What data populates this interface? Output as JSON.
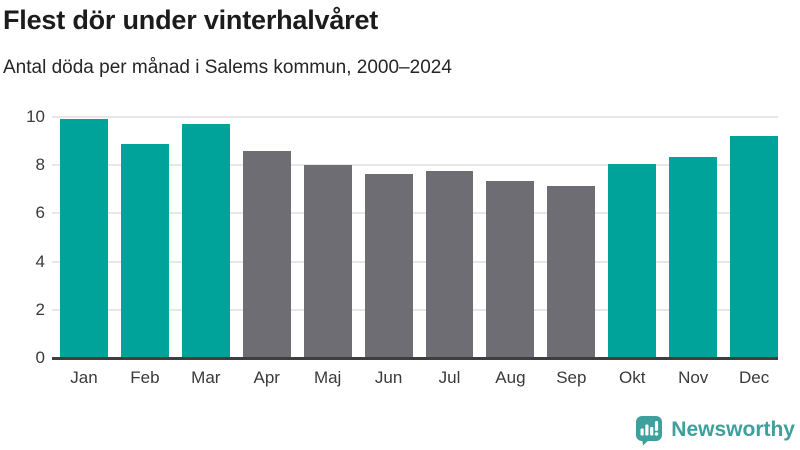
{
  "header": {
    "title": "Flest dör under vinterhalvåret",
    "subtitle": "Antal döda per månad i Salems kommun, 2000–2024"
  },
  "chart_data": {
    "type": "bar",
    "title": "Flest dör under vinterhalvåret",
    "subtitle": "Antal döda per månad i Salems kommun, 2000–2024",
    "categories": [
      "Jan",
      "Feb",
      "Mar",
      "Apr",
      "Maj",
      "Jun",
      "Jul",
      "Aug",
      "Sep",
      "Okt",
      "Nov",
      "Dec"
    ],
    "values": [
      9.9,
      8.9,
      9.7,
      8.6,
      8.0,
      7.65,
      7.75,
      7.35,
      7.15,
      8.05,
      8.35,
      9.2
    ],
    "bar_groups": [
      "winter",
      "winter",
      "winter",
      "summer",
      "summer",
      "summer",
      "summer",
      "summer",
      "summer",
      "winter",
      "winter",
      "winter"
    ],
    "group_colors": {
      "winter": "#00a39a",
      "summer": "#6e6d73"
    },
    "xlabel": "",
    "ylabel": "",
    "ylim": [
      0,
      10
    ],
    "yticks": [
      0,
      2,
      4,
      6,
      8,
      10
    ],
    "grid": true,
    "legend": false
  },
  "footer": {
    "brand": "Newsworthy",
    "logo_icon": "newsworthy-speech-bubble-barchart-icon"
  },
  "colors": {
    "bar_teal": "#00a39a",
    "bar_gray": "#6e6d73",
    "gridline": "#e7e7e7",
    "axis_line": "#3e3e3e",
    "title_text": "#1c1c1c",
    "subtitle_text": "#262626",
    "tick_text": "#3a3a3a",
    "logo_teal": "#3da09d"
  }
}
